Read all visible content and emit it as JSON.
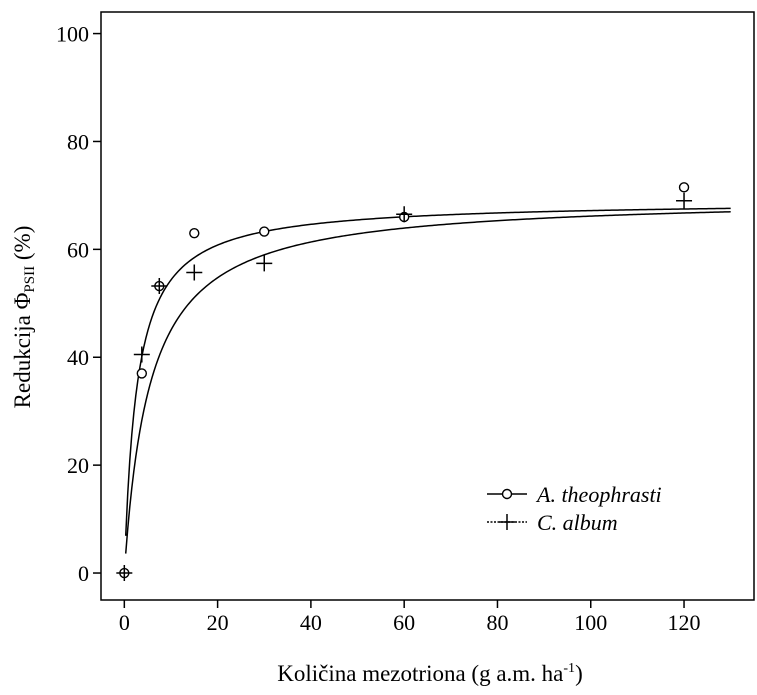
{
  "chart_data": {
    "type": "scatter",
    "title": "",
    "xlabel": "Količina mezotriona (g a.m. ha",
    "xlabel_sup": "-1",
    "xlabel_end": ")",
    "ylabel_prefix": "Redukcija Φ",
    "ylabel_sub": "PSII",
    "ylabel_suffix": " (%)",
    "xlim": [
      -5,
      135
    ],
    "ylim": [
      -5,
      104
    ],
    "xticks": [
      0,
      20,
      40,
      60,
      80,
      100,
      120
    ],
    "yticks": [
      0,
      20,
      40,
      60,
      80,
      100
    ],
    "grid": false,
    "legend_position": "bottom-right",
    "series": [
      {
        "name": "A. theophrasti",
        "marker": "circle",
        "x": [
          0,
          3.75,
          7.5,
          15,
          30,
          60,
          120
        ],
        "y": [
          0,
          37,
          53.2,
          63,
          63.3,
          66,
          71.5
        ],
        "fit": {
          "model": "hyperbolic",
          "max": 69.0,
          "half": 2.7
        }
      },
      {
        "name": "C. album",
        "marker": "plus",
        "x": [
          0,
          3.75,
          7.5,
          15,
          30,
          60,
          120
        ],
        "y": [
          0,
          40.5,
          53.2,
          55.7,
          57.4,
          66.5,
          69
        ],
        "fit": {
          "model": "hyperbolic",
          "max": 69.8,
          "half": 5.5
        }
      }
    ]
  }
}
